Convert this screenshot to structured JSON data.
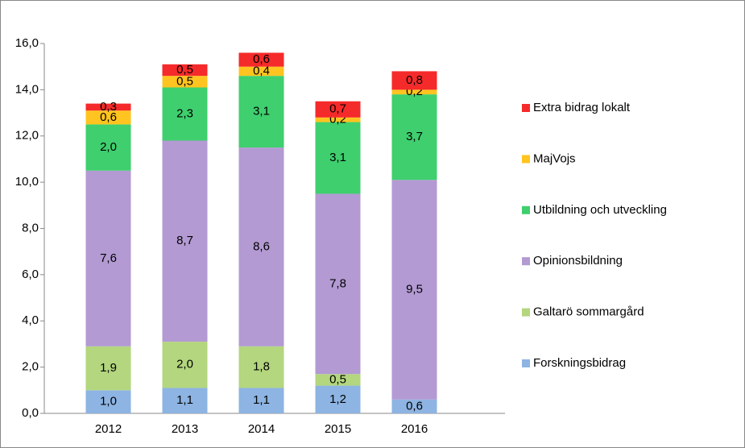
{
  "chart_data": {
    "type": "stacked_bar",
    "categories": [
      "2012",
      "2013",
      "2014",
      "2015",
      "2016"
    ],
    "series": [
      {
        "name": "Forskningsbidrag",
        "color": "#8db4e2",
        "values": [
          1.0,
          1.1,
          1.1,
          1.2,
          0.6
        ],
        "value_labels": [
          "1,0",
          "1,1",
          "1,1",
          "1,2",
          "0,6"
        ]
      },
      {
        "name": "Galtarö sommargård",
        "color": "#b3d67e",
        "values": [
          1.9,
          2.0,
          1.8,
          0.5,
          null
        ],
        "value_labels": [
          "1,9",
          "2,0",
          "1,8",
          "0,5",
          null
        ]
      },
      {
        "name": "Opinionsbildning",
        "color": "#b39ad3",
        "values": [
          7.6,
          8.7,
          8.6,
          7.8,
          9.5
        ],
        "value_labels": [
          "7,6",
          "8,7",
          "8,6",
          "7,8",
          "9,5"
        ]
      },
      {
        "name": "Utbildning och utveckling",
        "color": "#3fcf6e",
        "values": [
          2.0,
          2.3,
          3.1,
          3.1,
          3.7
        ],
        "value_labels": [
          "2,0",
          "2,3",
          "3,1",
          "3,1",
          "3,7"
        ]
      },
      {
        "name": "MajVojs",
        "color": "#ffc41f",
        "values": [
          0.6,
          0.5,
          0.4,
          0.2,
          0.2
        ],
        "value_labels": [
          "0,6",
          "0,5",
          "0,4",
          "0,2",
          "0,2"
        ]
      },
      {
        "name": "Extra bidrag lokalt",
        "color": "#f52a2a",
        "values": [
          0.3,
          0.5,
          0.6,
          0.7,
          0.8
        ],
        "value_labels": [
          "0,3",
          "0,5",
          "0,6",
          "0,7",
          "0,8"
        ]
      }
    ],
    "ylim": [
      0,
      16
    ],
    "yticks": [
      {
        "value": 0,
        "label": "0,0"
      },
      {
        "value": 2,
        "label": "2,0"
      },
      {
        "value": 4,
        "label": "4,0"
      },
      {
        "value": 6,
        "label": "6,0"
      },
      {
        "value": 8,
        "label": "8,0"
      },
      {
        "value": 10,
        "label": "10,0"
      },
      {
        "value": 12,
        "label": "12,0"
      },
      {
        "value": 14,
        "label": "14,0"
      },
      {
        "value": 16,
        "label": "16,0"
      }
    ],
    "grid": false,
    "legend": "right"
  }
}
